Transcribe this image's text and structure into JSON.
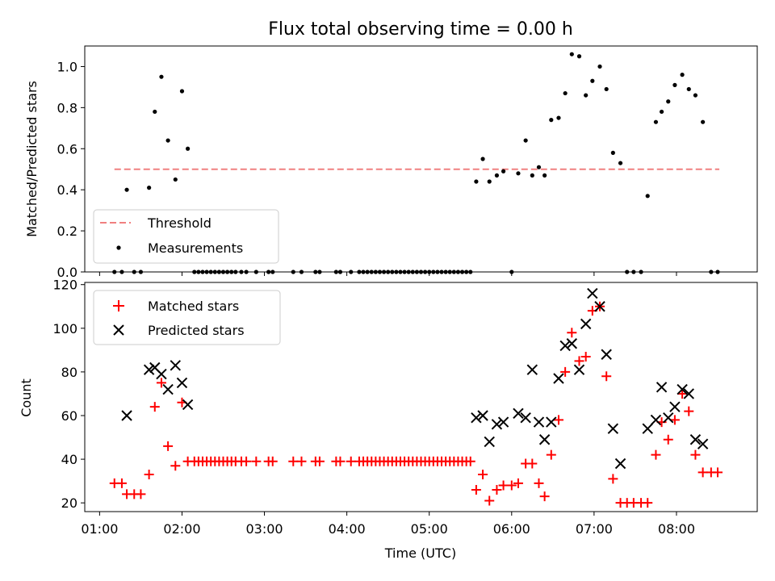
{
  "colors": {
    "threshold": "#f08080",
    "matched": "#ff0000",
    "predicted": "#000000",
    "measurements": "#000000"
  },
  "chart_data": [
    {
      "type": "scatter",
      "title": "Flux total observing time = 0.00 h",
      "xlabel": "",
      "ylabel": "Matched/Predicted stars",
      "ylim": [
        0,
        1.1
      ],
      "xlim": [
        0.82,
        8.98
      ],
      "yticks": [
        0,
        0.2,
        0.4,
        0.6,
        0.8,
        1.0
      ],
      "ytick_labels": [
        "0.0",
        "0.2",
        "0.4",
        "0.6",
        "0.8",
        "1.0"
      ],
      "legend_position": "lower-left",
      "threshold": {
        "name": "Threshold",
        "value": 0.5,
        "x": [
          1.18,
          8.52
        ]
      },
      "series": [
        {
          "name": "Measurements",
          "marker": "dot",
          "x": [
            1.18,
            1.27,
            1.33,
            1.42,
            1.5,
            1.6,
            1.67,
            1.75,
            1.83,
            1.92,
            2.0,
            2.07,
            2.15,
            2.2,
            2.25,
            2.3,
            2.35,
            2.4,
            2.45,
            2.5,
            2.55,
            2.6,
            2.65,
            2.72,
            2.78,
            2.9,
            3.05,
            3.1,
            3.35,
            3.45,
            3.62,
            3.67,
            3.87,
            3.92,
            4.05,
            4.15,
            4.2,
            4.25,
            4.3,
            4.35,
            4.4,
            4.45,
            4.5,
            4.55,
            4.6,
            4.65,
            4.7,
            4.75,
            4.8,
            4.85,
            4.9,
            4.95,
            5.0,
            5.05,
            5.1,
            5.15,
            5.2,
            5.25,
            5.3,
            5.35,
            5.4,
            5.45,
            5.5,
            5.57,
            5.65,
            5.73,
            5.82,
            5.9,
            6.0,
            6.08,
            6.17,
            6.25,
            6.33,
            6.4,
            6.48,
            6.57,
            6.65,
            6.73,
            6.82,
            6.9,
            6.98,
            7.07,
            7.15,
            7.23,
            7.32,
            7.4,
            7.48,
            7.57,
            7.65,
            7.75,
            7.82,
            7.9,
            7.98,
            8.07,
            8.15,
            8.23,
            8.32,
            8.42,
            8.5
          ],
          "y": [
            0,
            0,
            0.4,
            0,
            0,
            0.41,
            0.78,
            0.95,
            0.64,
            0.45,
            0.88,
            0.6,
            0,
            0,
            0,
            0,
            0,
            0,
            0,
            0,
            0,
            0,
            0,
            0,
            0,
            0,
            0,
            0,
            0,
            0,
            0,
            0,
            0,
            0,
            0,
            0,
            0,
            0,
            0,
            0,
            0,
            0,
            0,
            0,
            0,
            0,
            0,
            0,
            0,
            0,
            0,
            0,
            0,
            0,
            0,
            0,
            0,
            0,
            0,
            0,
            0,
            0,
            0,
            0.44,
            0.55,
            0.44,
            0.47,
            0.49,
            0,
            0.48,
            0.64,
            0.47,
            0.51,
            0.47,
            0.74,
            0.75,
            0.87,
            1.06,
            1.05,
            0.86,
            0.93,
            1.0,
            0.89,
            0.58,
            0.53,
            0,
            0,
            0,
            0.37,
            0.73,
            0.78,
            0.83,
            0.91,
            0.96,
            0.89,
            0.86,
            0.73,
            0,
            0
          ]
        }
      ]
    },
    {
      "type": "scatter",
      "title": "",
      "xlabel": "Time (UTC)",
      "ylabel": "Count",
      "ylim": [
        16,
        121
      ],
      "xlim": [
        0.82,
        8.98
      ],
      "yticks": [
        20,
        40,
        60,
        80,
        100,
        120
      ],
      "ytick_labels": [
        "20",
        "40",
        "60",
        "80",
        "100",
        "120"
      ],
      "xticks": [
        1,
        2,
        3,
        4,
        5,
        6,
        7,
        8
      ],
      "xtick_labels": [
        "01:00",
        "02:00",
        "03:00",
        "04:00",
        "05:00",
        "06:00",
        "07:00",
        "08:00"
      ],
      "legend_position": "upper-left",
      "series": [
        {
          "name": "Matched stars",
          "marker": "plus",
          "x": [
            1.18,
            1.27,
            1.33,
            1.42,
            1.5,
            1.6,
            1.67,
            1.75,
            1.83,
            1.92,
            2.0,
            2.07,
            2.15,
            2.2,
            2.25,
            2.3,
            2.35,
            2.4,
            2.45,
            2.5,
            2.55,
            2.6,
            2.65,
            2.72,
            2.78,
            2.9,
            3.05,
            3.1,
            3.35,
            3.45,
            3.62,
            3.67,
            3.87,
            3.92,
            4.05,
            4.15,
            4.2,
            4.25,
            4.3,
            4.35,
            4.4,
            4.45,
            4.5,
            4.55,
            4.6,
            4.65,
            4.7,
            4.75,
            4.8,
            4.85,
            4.9,
            4.95,
            5.0,
            5.05,
            5.1,
            5.15,
            5.2,
            5.25,
            5.3,
            5.35,
            5.4,
            5.45,
            5.5,
            5.57,
            5.65,
            5.73,
            5.82,
            5.9,
            6.0,
            6.08,
            6.17,
            6.25,
            6.33,
            6.4,
            6.48,
            6.57,
            6.65,
            6.73,
            6.82,
            6.9,
            6.98,
            7.07,
            7.15,
            7.23,
            7.32,
            7.4,
            7.48,
            7.57,
            7.65,
            7.75,
            7.82,
            7.9,
            7.98,
            8.07,
            8.15,
            8.23,
            8.32,
            8.42,
            8.5
          ],
          "y": [
            29,
            29,
            24,
            24,
            24,
            33,
            64,
            75,
            46,
            37,
            66,
            39,
            39,
            39,
            39,
            39,
            39,
            39,
            39,
            39,
            39,
            39,
            39,
            39,
            39,
            39,
            39,
            39,
            39,
            39,
            39,
            39,
            39,
            39,
            39,
            39,
            39,
            39,
            39,
            39,
            39,
            39,
            39,
            39,
            39,
            39,
            39,
            39,
            39,
            39,
            39,
            39,
            39,
            39,
            39,
            39,
            39,
            39,
            39,
            39,
            39,
            39,
            39,
            26,
            33,
            21,
            26,
            28,
            28,
            29,
            38,
            38,
            29,
            23,
            42,
            58,
            80,
            98,
            85,
            87,
            108,
            110,
            78,
            31,
            20,
            20,
            20,
            20,
            20,
            42,
            57,
            49,
            58,
            70,
            62,
            42,
            34,
            34,
            34
          ]
        },
        {
          "name": "Predicted stars",
          "marker": "x",
          "x": [
            1.33,
            1.6,
            1.67,
            1.75,
            1.83,
            1.92,
            2.0,
            2.07,
            5.57,
            5.65,
            5.73,
            5.82,
            5.9,
            6.08,
            6.17,
            6.25,
            6.33,
            6.4,
            6.48,
            6.57,
            6.65,
            6.73,
            6.82,
            6.9,
            6.98,
            7.07,
            7.15,
            7.23,
            7.32,
            7.65,
            7.75,
            7.82,
            7.9,
            7.98,
            8.07,
            8.15,
            8.23,
            8.32
          ],
          "y": [
            60,
            81,
            82,
            79,
            72,
            83,
            75,
            65,
            59,
            60,
            48,
            56,
            57,
            61,
            59,
            81,
            57,
            49,
            57,
            77,
            92,
            93,
            81,
            102,
            116,
            110,
            88,
            54,
            38,
            54,
            58,
            73,
            59,
            64,
            72,
            70,
            49,
            47
          ]
        }
      ]
    }
  ]
}
